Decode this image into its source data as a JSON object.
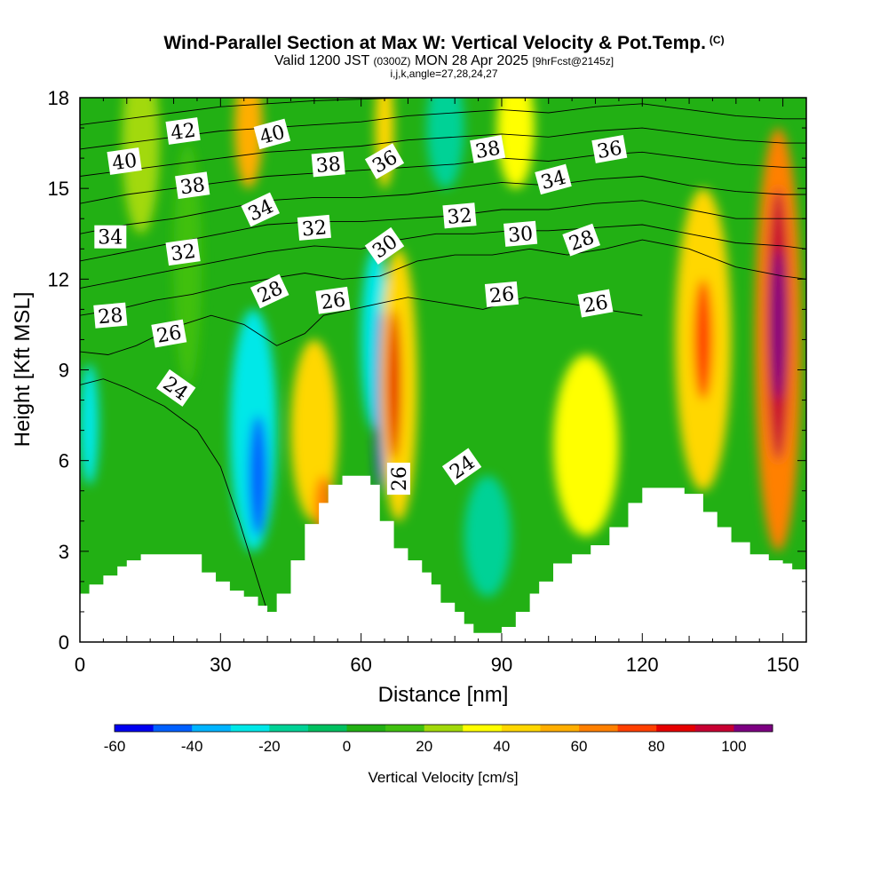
{
  "title": {
    "main": "Wind-Parallel Section at Max W: Vertical Velocity & Pot.Temp.",
    "copyright": "(C)",
    "valid_prefix": "Valid 1200 JST",
    "valid_utc": "(0300Z)",
    "valid_date": "MON 28 Apr 2025",
    "forecast": "[9hrFcst@2145z]",
    "index": "i,j,k,angle=27,28,24,27"
  },
  "chart_data": {
    "type": "contour",
    "xlabel": "Distance [nm]",
    "ylabel": "Height [Kft MSL]",
    "xlim": [
      0,
      155
    ],
    "ylim": [
      0,
      18
    ],
    "xticks": [
      0,
      30,
      60,
      90,
      120,
      150
    ],
    "yticks": [
      0,
      3,
      6,
      9,
      12,
      15,
      18
    ],
    "colorbar": {
      "label": "Vertical Velocity [cm/s]",
      "tick_labels": [
        -60,
        -40,
        -20,
        0,
        20,
        40,
        60,
        80,
        100
      ],
      "levels": [
        -60,
        -50,
        -40,
        -30,
        -20,
        -10,
        0,
        10,
        20,
        30,
        40,
        50,
        60,
        70,
        80,
        90,
        100,
        110
      ],
      "colors": [
        "#0000f0",
        "#0060ff",
        "#00b4ff",
        "#00e8e8",
        "#00d296",
        "#00c060",
        "#22b014",
        "#40c010",
        "#a2d90a",
        "#ffff00",
        "#ffd700",
        "#ffae00",
        "#ff8000",
        "#ff4000",
        "#e60000",
        "#c80032",
        "#7d0082"
      ]
    },
    "terrain": [
      [
        0,
        1.6
      ],
      [
        2,
        1.9
      ],
      [
        5,
        2.2
      ],
      [
        8,
        2.5
      ],
      [
        10,
        2.7
      ],
      [
        13,
        2.9
      ],
      [
        17,
        2.9
      ],
      [
        21,
        2.9
      ],
      [
        26,
        2.3
      ],
      [
        29,
        2.0
      ],
      [
        32,
        1.7
      ],
      [
        35,
        1.5
      ],
      [
        38,
        1.2
      ],
      [
        40,
        1.0
      ],
      [
        42,
        1.6
      ],
      [
        45,
        2.7
      ],
      [
        48,
        3.9
      ],
      [
        51,
        4.6
      ],
      [
        53,
        5.2
      ],
      [
        56,
        5.5
      ],
      [
        59,
        5.5
      ],
      [
        62,
        5.2
      ],
      [
        64,
        4.0
      ],
      [
        67,
        3.1
      ],
      [
        70,
        2.7
      ],
      [
        73,
        2.3
      ],
      [
        75,
        1.9
      ],
      [
        77,
        1.3
      ],
      [
        80,
        1.0
      ],
      [
        82,
        0.6
      ],
      [
        84,
        0.3
      ],
      [
        87,
        0.3
      ],
      [
        90,
        0.5
      ],
      [
        93,
        1.0
      ],
      [
        96,
        1.6
      ],
      [
        98,
        2.0
      ],
      [
        101,
        2.6
      ],
      [
        105,
        2.9
      ],
      [
        109,
        3.2
      ],
      [
        113,
        3.8
      ],
      [
        117,
        4.6
      ],
      [
        120,
        5.1
      ],
      [
        125,
        5.1
      ],
      [
        129,
        4.9
      ],
      [
        133,
        4.3
      ],
      [
        136,
        3.8
      ],
      [
        139,
        3.3
      ],
      [
        143,
        2.9
      ],
      [
        147,
        2.7
      ],
      [
        150,
        2.6
      ],
      [
        152,
        2.4
      ],
      [
        155,
        2.2
      ]
    ],
    "w_cells": [
      {
        "x": 2,
        "y": 7.2,
        "rx": 2,
        "ry": 2.0,
        "w": -30
      },
      {
        "x": 13,
        "y": 16.5,
        "rx": 4,
        "ry": 3.0,
        "w": 20
      },
      {
        "x": 23,
        "y": 12.5,
        "rx": 3,
        "ry": 4.0,
        "w": 10
      },
      {
        "x": 37,
        "y": 7.0,
        "rx": 5,
        "ry": 4.0,
        "w": -30
      },
      {
        "x": 38,
        "y": 5.5,
        "rx": 2,
        "ry": 2.0,
        "w": -50
      },
      {
        "x": 36,
        "y": 17.0,
        "rx": 3,
        "ry": 2.0,
        "w": 50
      },
      {
        "x": 50,
        "y": 7.0,
        "rx": 5,
        "ry": 3.0,
        "w": 40
      },
      {
        "x": 52,
        "y": 4.5,
        "rx": 2,
        "ry": 1.0,
        "w": 60
      },
      {
        "x": 63,
        "y": 10.0,
        "rx": 3,
        "ry": 3.0,
        "w": -30
      },
      {
        "x": 64,
        "y": 8.0,
        "rx": 1,
        "ry": 3.0,
        "w": -60
      },
      {
        "x": 68,
        "y": 8.5,
        "rx": 4,
        "ry": 4.5,
        "w": 40
      },
      {
        "x": 67,
        "y": 8.5,
        "rx": 1.5,
        "ry": 2.5,
        "w": 80
      },
      {
        "x": 65,
        "y": 17.0,
        "rx": 2,
        "ry": 2.0,
        "w": 40
      },
      {
        "x": 78,
        "y": 17.0,
        "rx": 4,
        "ry": 2.0,
        "w": -20
      },
      {
        "x": 93,
        "y": 17.0,
        "rx": 4,
        "ry": 2.0,
        "w": 30
      },
      {
        "x": 87,
        "y": 3.5,
        "rx": 5,
        "ry": 2.0,
        "w": -20
      },
      {
        "x": 108,
        "y": 6.5,
        "rx": 7,
        "ry": 3.0,
        "w": 30
      },
      {
        "x": 133,
        "y": 10.0,
        "rx": 6,
        "ry": 5.0,
        "w": 40
      },
      {
        "x": 133,
        "y": 10.0,
        "rx": 2,
        "ry": 2.0,
        "w": 70
      },
      {
        "x": 149,
        "y": 10.0,
        "rx": 5,
        "ry": 7.0,
        "w": 60
      },
      {
        "x": 149,
        "y": 10.5,
        "rx": 2.5,
        "ry": 4.5,
        "w": 90
      },
      {
        "x": 149,
        "y": 10.5,
        "rx": 1.5,
        "ry": 2.5,
        "w": 100
      }
    ],
    "theta_contours": [
      {
        "value": 24,
        "points": [
          [
            0,
            8.5
          ],
          [
            5,
            8.7
          ],
          [
            10,
            8.4
          ],
          [
            18,
            7.8
          ],
          [
            25,
            7.0
          ],
          [
            30,
            5.8
          ],
          [
            34,
            4.0
          ],
          [
            38,
            2.0
          ],
          [
            40,
            1.0
          ]
        ]
      },
      {
        "value": 26,
        "points": [
          [
            0,
            9.6
          ],
          [
            6,
            9.5
          ],
          [
            12,
            9.8
          ],
          [
            20,
            10.4
          ],
          [
            28,
            10.8
          ],
          [
            35,
            10.5
          ],
          [
            42,
            9.8
          ],
          [
            48,
            10.2
          ],
          [
            52,
            10.8
          ],
          [
            58,
            11.0
          ],
          [
            64,
            11.2
          ],
          [
            70,
            11.4
          ],
          [
            78,
            11.2
          ],
          [
            86,
            11.0
          ],
          [
            95,
            11.4
          ],
          [
            104,
            11.2
          ],
          [
            112,
            11.0
          ],
          [
            120,
            10.8
          ]
        ]
      },
      {
        "value": 28,
        "points": [
          [
            0,
            10.8
          ],
          [
            8,
            11.0
          ],
          [
            16,
            11.3
          ],
          [
            24,
            11.5
          ],
          [
            32,
            11.8
          ],
          [
            40,
            12.0
          ],
          [
            48,
            12.2
          ],
          [
            56,
            12.0
          ],
          [
            64,
            12.1
          ],
          [
            72,
            12.6
          ],
          [
            80,
            12.8
          ],
          [
            88,
            12.8
          ],
          [
            96,
            13.0
          ],
          [
            104,
            12.8
          ],
          [
            112,
            13.0
          ],
          [
            120,
            13.3
          ],
          [
            130,
            13.0
          ],
          [
            140,
            12.4
          ],
          [
            150,
            12.1
          ],
          [
            155,
            12.0
          ]
        ]
      },
      {
        "value": 30,
        "points": [
          [
            0,
            11.7
          ],
          [
            10,
            12.0
          ],
          [
            20,
            12.3
          ],
          [
            30,
            12.6
          ],
          [
            40,
            12.9
          ],
          [
            50,
            13.1
          ],
          [
            60,
            13.0
          ],
          [
            68,
            13.3
          ],
          [
            76,
            13.5
          ],
          [
            84,
            13.5
          ],
          [
            92,
            13.6
          ],
          [
            100,
            13.6
          ],
          [
            110,
            13.7
          ],
          [
            120,
            13.8
          ],
          [
            130,
            13.5
          ],
          [
            140,
            13.2
          ],
          [
            150,
            13.1
          ],
          [
            155,
            13.0
          ]
        ]
      },
      {
        "value": 32,
        "points": [
          [
            0,
            12.6
          ],
          [
            10,
            12.9
          ],
          [
            20,
            13.2
          ],
          [
            30,
            13.5
          ],
          [
            40,
            13.8
          ],
          [
            50,
            13.9
          ],
          [
            60,
            13.9
          ],
          [
            70,
            14.0
          ],
          [
            80,
            14.1
          ],
          [
            90,
            14.3
          ],
          [
            100,
            14.3
          ],
          [
            110,
            14.5
          ],
          [
            120,
            14.6
          ],
          [
            130,
            14.3
          ],
          [
            140,
            14.0
          ],
          [
            150,
            14.0
          ],
          [
            155,
            14.0
          ]
        ]
      },
      {
        "value": 34,
        "points": [
          [
            0,
            13.5
          ],
          [
            10,
            13.8
          ],
          [
            20,
            14.0
          ],
          [
            30,
            14.3
          ],
          [
            40,
            14.6
          ],
          [
            50,
            14.7
          ],
          [
            60,
            14.7
          ],
          [
            70,
            14.8
          ],
          [
            80,
            15.0
          ],
          [
            90,
            15.2
          ],
          [
            100,
            15.1
          ],
          [
            110,
            15.3
          ],
          [
            120,
            15.4
          ],
          [
            130,
            15.1
          ],
          [
            140,
            14.9
          ],
          [
            150,
            14.8
          ],
          [
            155,
            14.8
          ]
        ]
      },
      {
        "value": 36,
        "points": [
          [
            0,
            14.5
          ],
          [
            10,
            14.8
          ],
          [
            20,
            15.0
          ],
          [
            30,
            15.2
          ],
          [
            40,
            15.4
          ],
          [
            50,
            15.5
          ],
          [
            60,
            15.6
          ],
          [
            70,
            15.7
          ],
          [
            80,
            15.8
          ],
          [
            90,
            16.0
          ],
          [
            100,
            15.9
          ],
          [
            110,
            16.1
          ],
          [
            120,
            16.2
          ],
          [
            130,
            16.0
          ],
          [
            140,
            15.8
          ],
          [
            150,
            15.7
          ],
          [
            155,
            15.7
          ]
        ]
      },
      {
        "value": 38,
        "points": [
          [
            0,
            15.4
          ],
          [
            10,
            15.6
          ],
          [
            20,
            15.8
          ],
          [
            30,
            16.0
          ],
          [
            40,
            16.2
          ],
          [
            50,
            16.3
          ],
          [
            60,
            16.4
          ],
          [
            70,
            16.6
          ],
          [
            80,
            16.7
          ],
          [
            90,
            16.8
          ],
          [
            100,
            16.7
          ],
          [
            110,
            16.9
          ],
          [
            120,
            17.0
          ],
          [
            130,
            16.8
          ],
          [
            140,
            16.6
          ],
          [
            150,
            16.5
          ],
          [
            155,
            16.5
          ]
        ]
      },
      {
        "value": 40,
        "points": [
          [
            0,
            16.3
          ],
          [
            10,
            16.5
          ],
          [
            20,
            16.7
          ],
          [
            30,
            16.9
          ],
          [
            40,
            17.0
          ],
          [
            50,
            17.1
          ],
          [
            60,
            17.2
          ],
          [
            70,
            17.4
          ],
          [
            80,
            17.5
          ],
          [
            90,
            17.6
          ],
          [
            100,
            17.5
          ],
          [
            110,
            17.7
          ],
          [
            120,
            17.8
          ],
          [
            130,
            17.6
          ],
          [
            140,
            17.4
          ],
          [
            150,
            17.3
          ],
          [
            155,
            17.3
          ]
        ]
      },
      {
        "value": 42,
        "points": [
          [
            0,
            17.1
          ],
          [
            10,
            17.3
          ],
          [
            20,
            17.5
          ],
          [
            30,
            17.7
          ],
          [
            40,
            17.8
          ],
          [
            50,
            17.9
          ],
          [
            60,
            17.95
          ],
          [
            70,
            18.0
          ]
        ]
      }
    ],
    "theta_labels": [
      {
        "text": "40",
        "x": 9.5,
        "y": 15.9,
        "angle": -8
      },
      {
        "text": "42",
        "x": 22,
        "y": 16.9,
        "angle": -8
      },
      {
        "text": "38",
        "x": 24,
        "y": 15.1,
        "angle": -8
      },
      {
        "text": "40",
        "x": 41,
        "y": 16.8,
        "angle": -15
      },
      {
        "text": "34",
        "x": 6.5,
        "y": 13.4,
        "angle": 0
      },
      {
        "text": "32",
        "x": 22,
        "y": 12.9,
        "angle": -8
      },
      {
        "text": "34",
        "x": 38.5,
        "y": 14.3,
        "angle": -25
      },
      {
        "text": "38",
        "x": 53,
        "y": 15.8,
        "angle": -5
      },
      {
        "text": "36",
        "x": 65,
        "y": 15.9,
        "angle": -30
      },
      {
        "text": "32",
        "x": 50,
        "y": 13.7,
        "angle": -5
      },
      {
        "text": "30",
        "x": 65,
        "y": 13.1,
        "angle": -35
      },
      {
        "text": "28",
        "x": 6.5,
        "y": 10.8,
        "angle": -5
      },
      {
        "text": "26",
        "x": 19,
        "y": 10.2,
        "angle": -10
      },
      {
        "text": "28",
        "x": 40.5,
        "y": 11.6,
        "angle": -25
      },
      {
        "text": "26",
        "x": 54,
        "y": 11.3,
        "angle": -8
      },
      {
        "text": "24",
        "x": 20.5,
        "y": 8.4,
        "angle": 35
      },
      {
        "text": "32",
        "x": 81,
        "y": 14.1,
        "angle": -5
      },
      {
        "text": "38",
        "x": 87,
        "y": 16.3,
        "angle": -10
      },
      {
        "text": "34",
        "x": 101,
        "y": 15.3,
        "angle": -15
      },
      {
        "text": "36",
        "x": 113,
        "y": 16.3,
        "angle": -10
      },
      {
        "text": "30",
        "x": 94,
        "y": 13.5,
        "angle": -5
      },
      {
        "text": "28",
        "x": 107,
        "y": 13.3,
        "angle": -20
      },
      {
        "text": "26",
        "x": 90,
        "y": 11.5,
        "angle": -5
      },
      {
        "text": "26",
        "x": 110,
        "y": 11.2,
        "angle": -10
      },
      {
        "text": "26",
        "x": 68,
        "y": 5.4,
        "angle": -90
      },
      {
        "text": "24",
        "x": 81.5,
        "y": 5.8,
        "angle": -35
      }
    ]
  }
}
